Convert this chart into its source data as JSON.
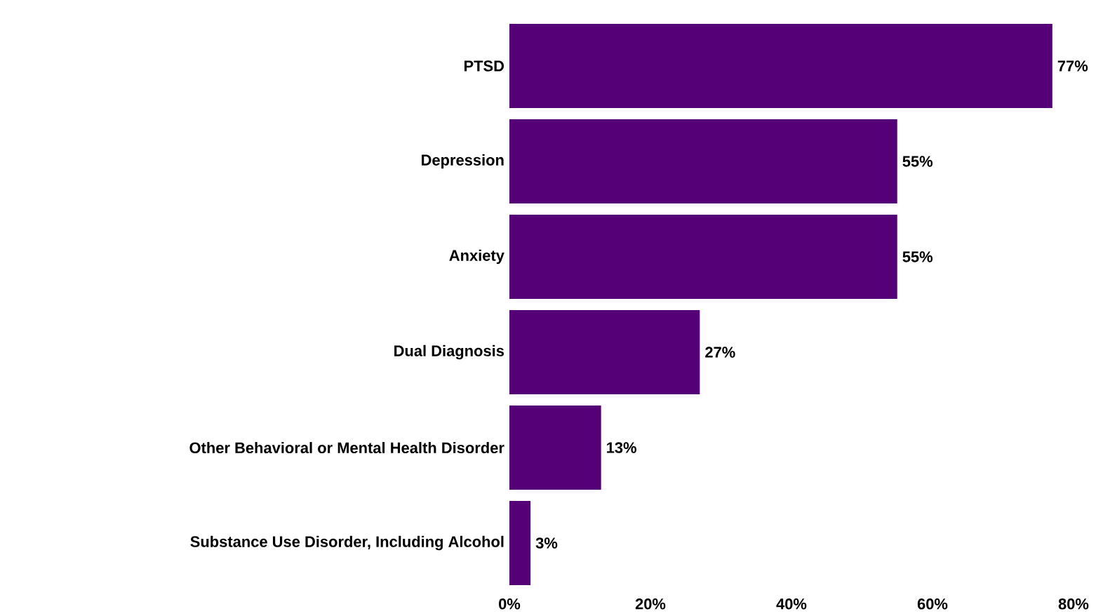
{
  "chart_data": {
    "type": "bar",
    "orientation": "horizontal",
    "categories": [
      "PTSD",
      "Depression",
      "Anxiety",
      "Dual Diagnosis",
      "Other Behavioral or Mental Health Disorder",
      "Substance Use Disorder, Including Alcohol"
    ],
    "values": [
      77,
      55,
      55,
      27,
      13,
      3
    ],
    "value_labels": [
      "77%",
      "55%",
      "55%",
      "27%",
      "13%",
      "3%"
    ],
    "color": "#560078",
    "xlim": [
      0,
      80
    ],
    "xticks": [
      {
        "value": 0,
        "label": "0%"
      },
      {
        "value": 20,
        "label": "20%"
      },
      {
        "value": 40,
        "label": "40%"
      },
      {
        "value": 60,
        "label": "60%"
      },
      {
        "value": 80,
        "label": "80%"
      }
    ],
    "grid": false
  }
}
